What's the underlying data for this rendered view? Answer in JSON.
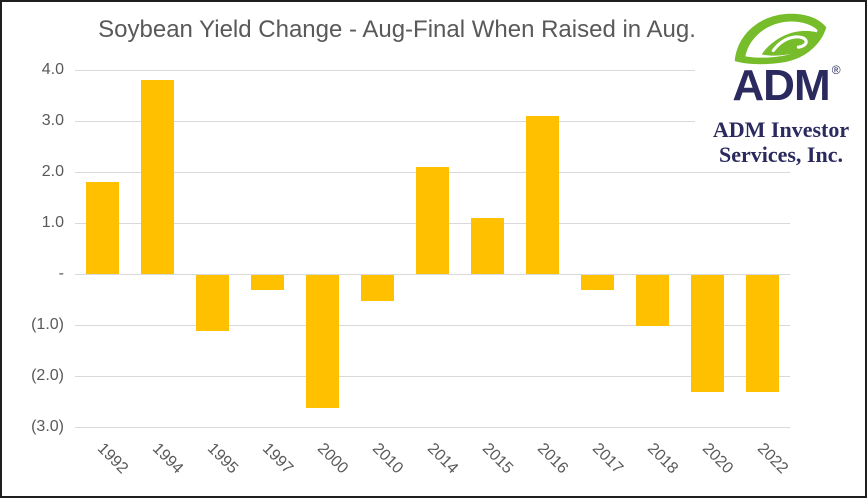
{
  "chart_data": {
    "type": "bar",
    "title": "Soybean Yield Change - Aug-Final When Raised in Aug.",
    "categories": [
      "1992",
      "1994",
      "1995",
      "1997",
      "2000",
      "2010",
      "2014",
      "2015",
      "2016",
      "2017",
      "2018",
      "2020",
      "2022"
    ],
    "values": [
      1.8,
      3.8,
      -1.1,
      -0.3,
      -2.6,
      -0.5,
      2.1,
      1.1,
      3.1,
      -0.3,
      -1.0,
      -2.3,
      -2.3
    ],
    "xlabel": "",
    "ylabel": "",
    "y_axis": {
      "min": -3.0,
      "max": 4.0,
      "step": 1.0,
      "tick_labels": [
        "4.0",
        "3.0",
        "2.0",
        "1.0",
        "-",
        "(1.0)",
        "(2.0)",
        "(3.0)"
      ]
    },
    "x_tick_rotation_deg": 45,
    "grid": "horizontal-only",
    "legend": "none",
    "bar_color": "#FFC000",
    "gridline_color": "#D9D9D9",
    "title_color": "#595959",
    "axis_label_color": "#595959"
  },
  "logo": {
    "brand": "ADM",
    "registered_mark": "®",
    "company_line1": "ADM Investor",
    "company_line2": "Services, Inc.",
    "leaf_color": "#76BC2B",
    "brand_color": "#2B2A5E"
  }
}
